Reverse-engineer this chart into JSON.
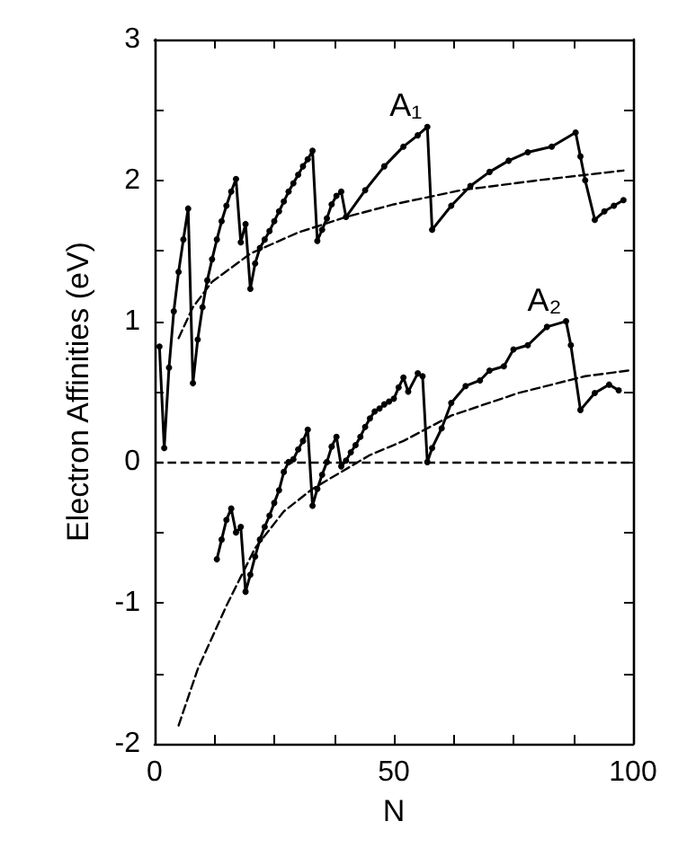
{
  "chart_data": {
    "type": "line",
    "xlabel": "N",
    "ylabel": "Electron Affinities (eV)",
    "xlim": [
      0,
      100
    ],
    "ylim": [
      -2,
      3
    ],
    "xticks": [
      0,
      {
        "value": 12.5,
        "label": null
      },
      {
        "value": 25,
        "label": null
      },
      {
        "value": 37.5,
        "label": null
      },
      50,
      {
        "value": 62.5,
        "label": null
      },
      {
        "value": 75,
        "label": null
      },
      {
        "value": 87.5,
        "label": null
      },
      100
    ],
    "yticks": [
      -2,
      {
        "value": -1.5,
        "label": null
      },
      -1,
      {
        "value": -0.5,
        "label": null
      },
      0,
      {
        "value": 0.5,
        "label": null
      },
      1,
      {
        "value": 1.5,
        "label": null
      },
      2,
      {
        "value": 2.5,
        "label": null
      },
      3
    ],
    "grid": false,
    "legend": false,
    "series": [
      {
        "name": "A₁",
        "color": "#000000",
        "marker": "circle",
        "line_style": "solid",
        "x": [
          1,
          2,
          3,
          4,
          5,
          6,
          7,
          8,
          9,
          10,
          11,
          12,
          13,
          14,
          15,
          16,
          17,
          18,
          19,
          20,
          21,
          22,
          23,
          24,
          25,
          26,
          27,
          28,
          29,
          30,
          31,
          32,
          33,
          34,
          35,
          36,
          37,
          38,
          39,
          40,
          44,
          48,
          52,
          55,
          57,
          58,
          62,
          66,
          70,
          74,
          78,
          83,
          88,
          89,
          90,
          92,
          94,
          96,
          98
        ],
        "values": [
          0.82,
          0.1,
          0.67,
          1.07,
          1.35,
          1.58,
          1.8,
          0.56,
          0.87,
          1.1,
          1.29,
          1.44,
          1.58,
          1.71,
          1.82,
          1.92,
          2.01,
          1.56,
          1.69,
          1.23,
          1.41,
          1.52,
          1.58,
          1.64,
          1.71,
          1.78,
          1.85,
          1.92,
          1.98,
          2.04,
          2.1,
          2.15,
          2.21,
          1.57,
          1.65,
          1.73,
          1.83,
          1.89,
          1.92,
          1.74,
          1.93,
          2.1,
          2.24,
          2.32,
          2.38,
          1.65,
          1.82,
          1.96,
          2.06,
          2.14,
          2.2,
          2.24,
          2.34,
          2.17,
          2.0,
          1.72,
          1.78,
          1.82,
          1.86
        ]
      },
      {
        "name": "A₂",
        "color": "#000000",
        "marker": "circle",
        "line_style": "solid",
        "x": [
          13,
          14,
          15,
          16,
          17,
          18,
          19,
          20,
          21,
          22,
          23,
          24,
          25,
          26,
          27,
          28,
          29,
          30,
          31,
          32,
          33,
          34,
          35,
          36,
          37,
          38,
          39,
          40,
          41,
          42,
          43,
          44,
          45,
          46,
          47,
          48,
          49,
          50,
          51,
          52,
          53,
          55,
          56,
          57,
          58,
          60,
          62,
          65,
          68,
          70,
          73,
          75,
          78,
          82,
          86,
          87,
          89,
          92,
          95,
          97
        ],
        "values": [
          -0.69,
          -0.55,
          -0.41,
          -0.33,
          -0.5,
          -0.46,
          -0.92,
          -0.8,
          -0.67,
          -0.55,
          -0.46,
          -0.38,
          -0.29,
          -0.2,
          -0.07,
          0.0,
          0.02,
          0.09,
          0.15,
          0.23,
          -0.31,
          -0.19,
          -0.09,
          0.0,
          0.11,
          0.18,
          -0.03,
          0.01,
          0.07,
          0.12,
          0.18,
          0.25,
          0.31,
          0.36,
          0.38,
          0.41,
          0.43,
          0.45,
          0.53,
          0.6,
          0.5,
          0.63,
          0.61,
          0.0,
          0.1,
          0.24,
          0.42,
          0.54,
          0.58,
          0.65,
          0.68,
          0.8,
          0.83,
          0.96,
          1.0,
          0.83,
          0.37,
          0.49,
          0.55,
          0.51
        ]
      },
      {
        "color": "#000000",
        "marker": "none",
        "line_style": "dashed",
        "x": [
          5,
          8,
          12,
          20,
          30,
          40,
          50,
          64,
          80,
          98
        ],
        "values": [
          0.88,
          1.1,
          1.28,
          1.48,
          1.63,
          1.74,
          1.83,
          1.93,
          2.0,
          2.07
        ]
      },
      {
        "color": "#000000",
        "marker": "none",
        "line_style": "dashed",
        "x": [
          5,
          9,
          15,
          21,
          27,
          33,
          39,
          45,
          52,
          62,
          76,
          90,
          99
        ],
        "values": [
          -1.87,
          -1.47,
          -1.02,
          -0.61,
          -0.35,
          -0.19,
          -0.07,
          0.05,
          0.15,
          0.33,
          0.49,
          0.61,
          0.65
        ]
      }
    ],
    "ref_lines": [
      {
        "axis": "y",
        "value": 0,
        "color": "#000000",
        "line_style": "dashed"
      }
    ]
  }
}
